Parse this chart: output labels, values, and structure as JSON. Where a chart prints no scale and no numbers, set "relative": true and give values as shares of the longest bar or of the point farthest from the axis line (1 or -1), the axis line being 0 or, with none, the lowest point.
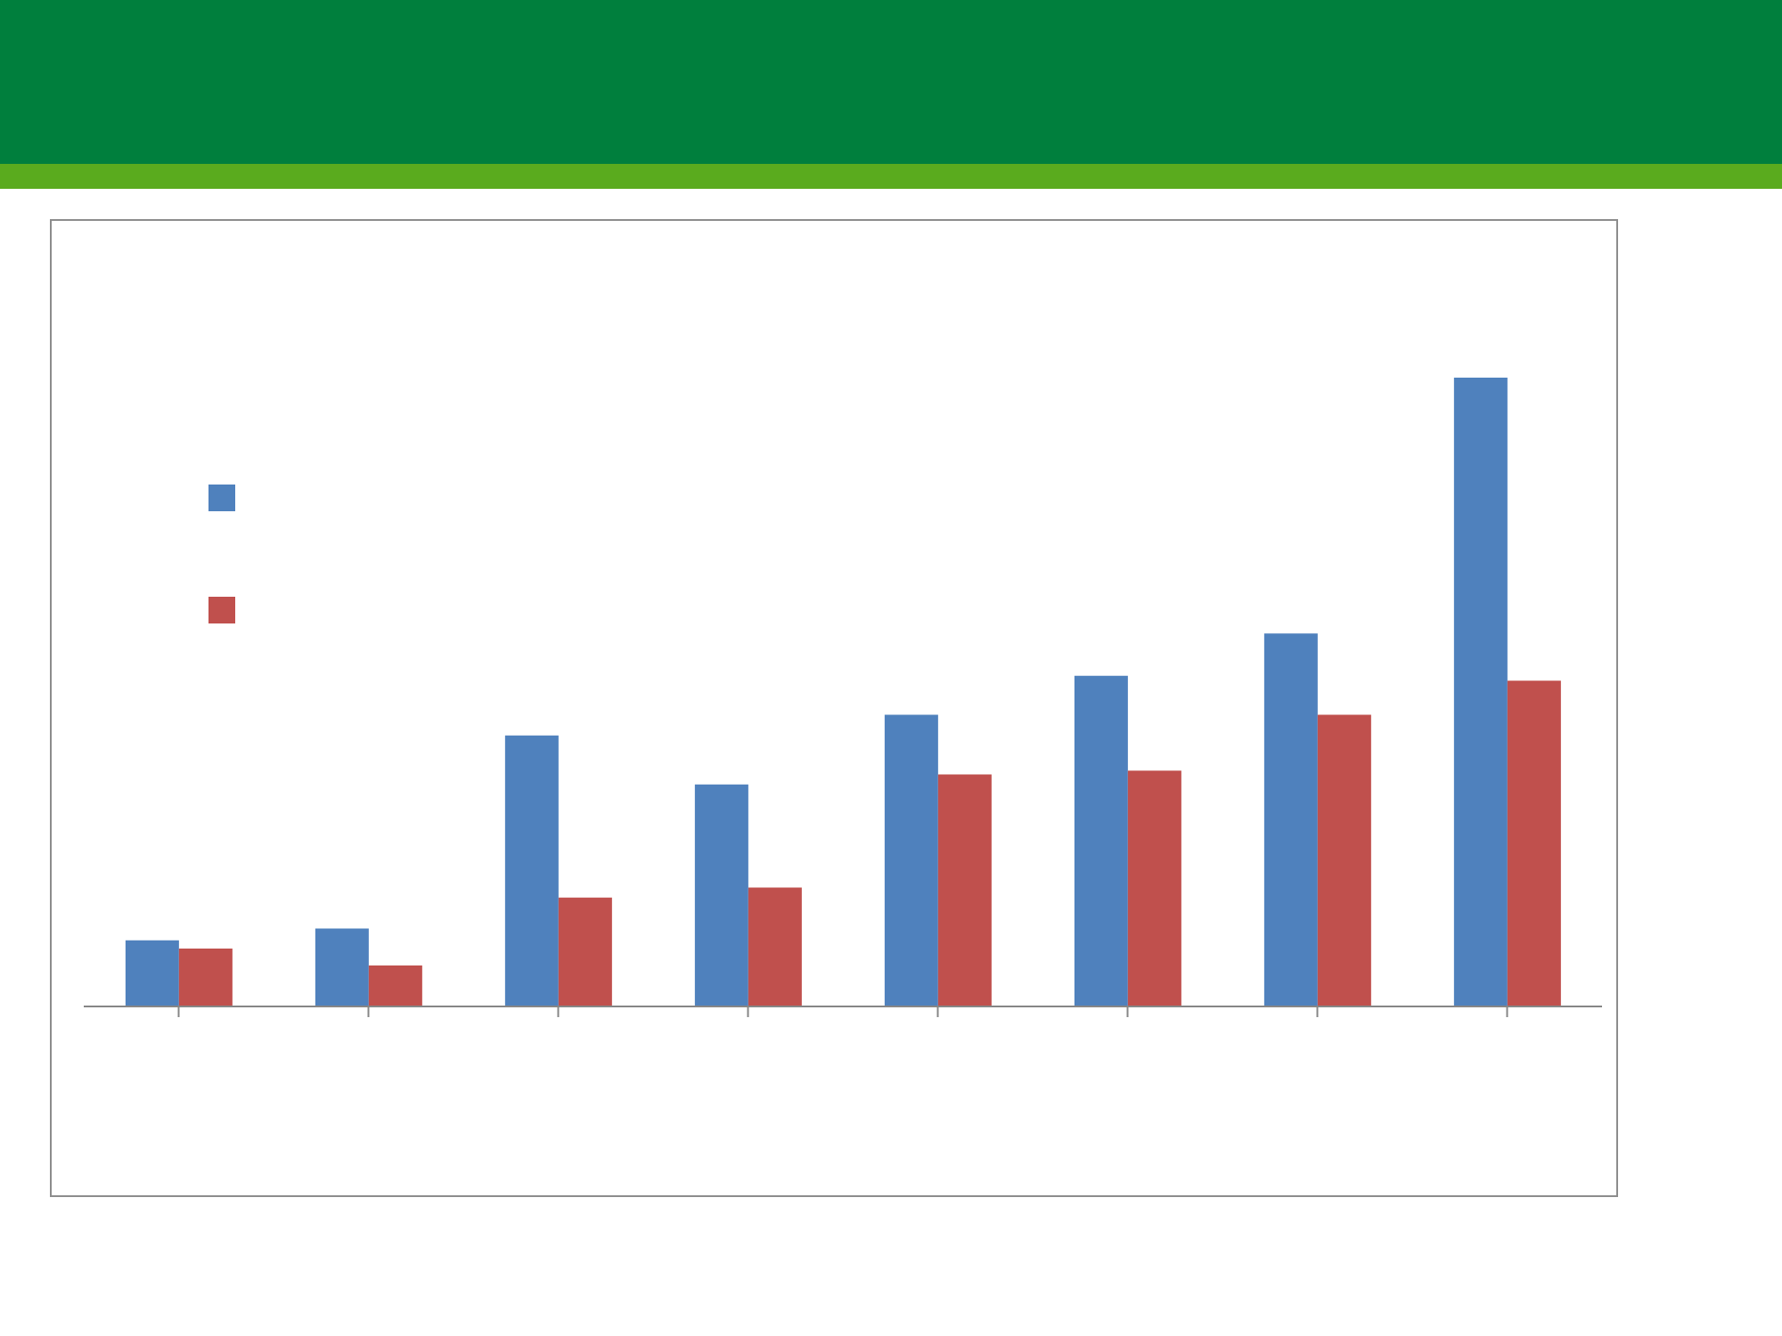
{
  "chart_data": {
    "type": "bar",
    "relative": true,
    "categories": [
      null,
      null,
      null,
      null,
      null,
      null,
      null,
      null
    ],
    "series": [
      {
        "color": "#4f81bd",
        "values": [
          0.105,
          0.124,
          0.431,
          0.353,
          0.464,
          0.526,
          0.593,
          1
        ]
      },
      {
        "color": "#c0504d",
        "values": [
          0.092,
          0.065,
          0.173,
          0.189,
          0.369,
          0.375,
          0.464,
          0.518
        ]
      }
    ],
    "grid": false
  }
}
